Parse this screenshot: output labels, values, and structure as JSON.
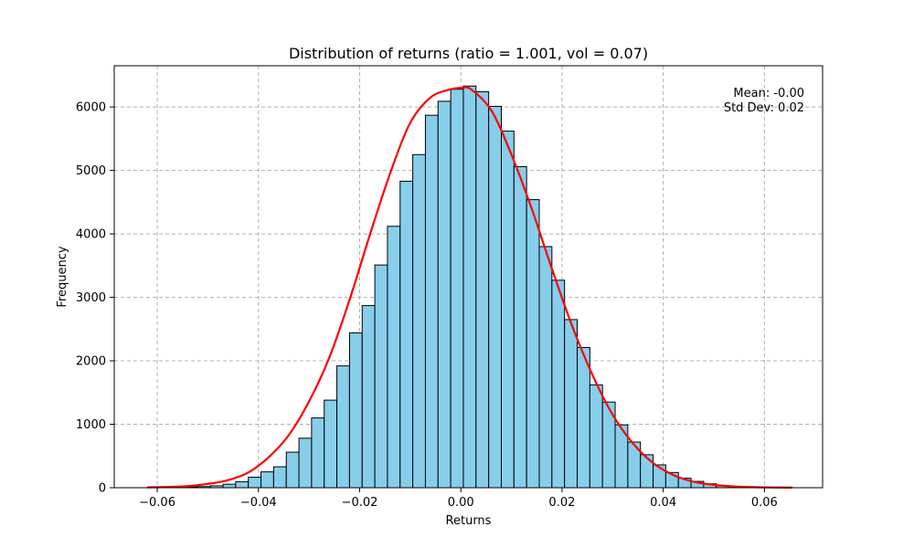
{
  "chart_data": {
    "type": "bar",
    "title": "Distribution of returns  (ratio = 1.001, vol = 0.07)",
    "xlabel": "Returns",
    "ylabel": "Frequency",
    "xlim": [
      -0.0685,
      0.0715
    ],
    "ylim": [
      0,
      6650
    ],
    "xticks": [
      -0.06,
      -0.04,
      -0.02,
      0.0,
      0.02,
      0.04,
      0.06
    ],
    "xtick_labels": [
      "−0.06",
      "−0.04",
      "−0.02",
      "0.00",
      "0.02",
      "0.04",
      "0.06"
    ],
    "yticks": [
      0,
      1000,
      2000,
      3000,
      4000,
      5000,
      6000
    ],
    "ytick_labels": [
      "0",
      "1000",
      "2000",
      "3000",
      "4000",
      "5000",
      "6000"
    ],
    "grid": true,
    "annotations": {
      "mean": "Mean: -0.00",
      "std": "Std Dev: 0.02"
    },
    "histogram": {
      "bin_start": -0.062,
      "bin_width": 0.0025,
      "counts": [
        3,
        5,
        8,
        12,
        18,
        30,
        55,
        95,
        165,
        250,
        330,
        560,
        780,
        1100,
        1380,
        1920,
        2440,
        2870,
        3510,
        4120,
        4830,
        5250,
        5870,
        6090,
        6280,
        6330,
        6240,
        6010,
        5620,
        5060,
        4540,
        3800,
        3270,
        2650,
        2210,
        1620,
        1350,
        990,
        720,
        520,
        360,
        240,
        150,
        100,
        62,
        35,
        20,
        12,
        7,
        4,
        3
      ],
      "fill_color": "#87ceeb",
      "edge_color": "#000000"
    },
    "kde_curve": {
      "color": "#ff0000",
      "x": [
        -0.062,
        -0.058,
        -0.054,
        -0.05,
        -0.046,
        -0.042,
        -0.038,
        -0.034,
        -0.03,
        -0.026,
        -0.022,
        -0.018,
        -0.014,
        -0.01,
        -0.006,
        -0.002,
        0.0,
        0.002,
        0.006,
        0.01,
        0.014,
        0.018,
        0.022,
        0.026,
        0.03,
        0.034,
        0.038,
        0.042,
        0.046,
        0.05,
        0.054,
        0.058,
        0.062,
        0.0655
      ],
      "y": [
        5,
        12,
        25,
        60,
        120,
        240,
        480,
        830,
        1360,
        2050,
        2960,
        3980,
        4950,
        5750,
        6150,
        6280,
        6300,
        6280,
        5950,
        5250,
        4400,
        3450,
        2550,
        1780,
        1150,
        700,
        390,
        200,
        95,
        45,
        20,
        9,
        4,
        2
      ]
    }
  }
}
